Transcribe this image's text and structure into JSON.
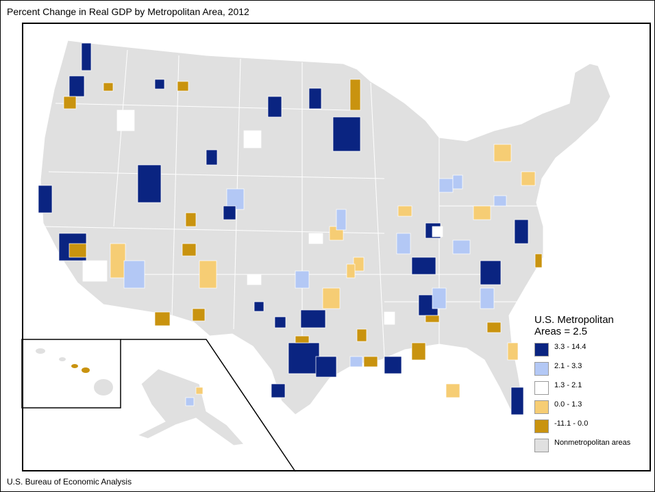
{
  "title": "Percent Change in Real GDP by Metropolitan Area, 2012",
  "footer": "U.S. Bureau of Economic Analysis",
  "legend": {
    "title_line1": "U.S. Metropolitan",
    "title_line2": "Areas = 2.5",
    "items": [
      {
        "label": "3.3 - 14.4",
        "color": "#0a2481"
      },
      {
        "label": "2.1 - 3.3",
        "color": "#b3c8f5"
      },
      {
        "label": "1.3 - 2.1",
        "color": "#ffffff"
      },
      {
        "label": "0.0 - 1.3",
        "color": "#f6cd74"
      },
      {
        "label": "-11.1 - 0.0",
        "color": "#c9930f"
      },
      {
        "label": "Nonmetropolitan areas",
        "color": "#e0e0e0"
      }
    ]
  }
}
